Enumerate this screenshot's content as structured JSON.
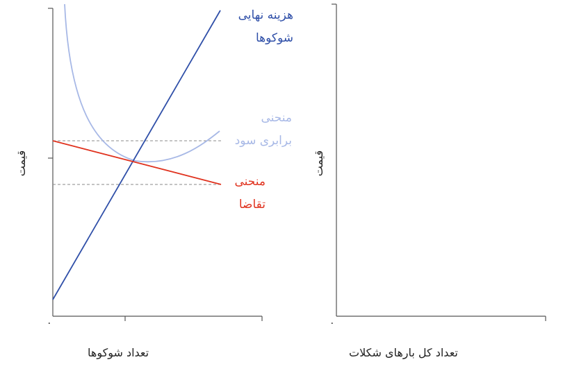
{
  "colors": {
    "axis": "#555555",
    "mc": "#2f4fa8",
    "ac": "#a7b8e6",
    "demand": "#e0321e",
    "dashed": "#8a8a8a"
  },
  "left_panel": {
    "ylabel": "قیمت",
    "xlabel": "تعداد شوکوها",
    "origin": "۰",
    "mc_label": [
      "هزینه نهایی",
      "شوکوها"
    ],
    "ac_label": [
      "منحنی",
      "برابری سود"
    ],
    "demand_label": [
      "منحنی",
      "تقاضا"
    ]
  },
  "right_panel": {
    "ylabel": "قیمت",
    "xlabel": "تعداد کل بارهای شکلات",
    "origin": "۰"
  }
}
